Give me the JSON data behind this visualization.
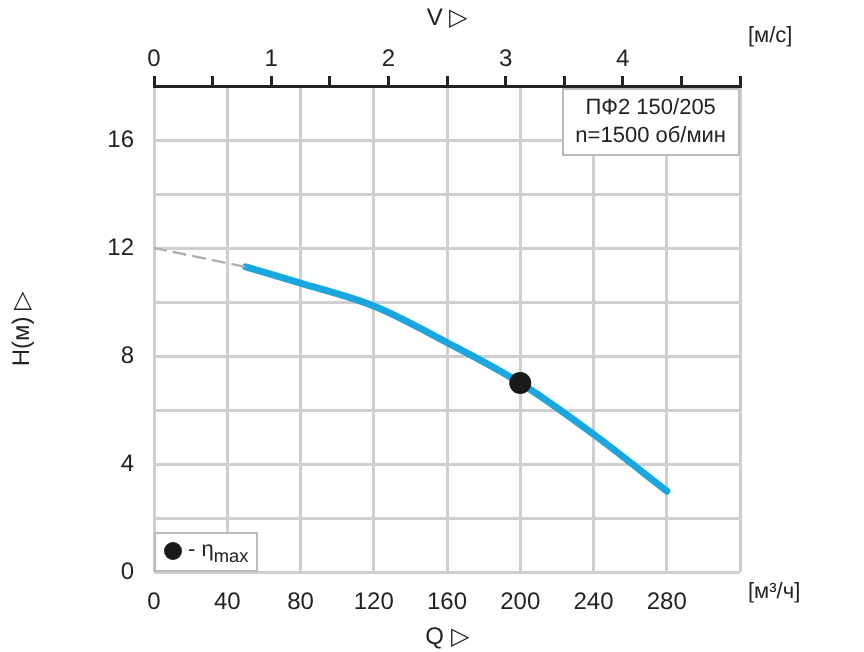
{
  "chart_data": {
    "type": "line",
    "xlabel": "Q ▷",
    "ylabel": "H(м) ▷",
    "x2label": "V ▷",
    "annotations": [
      "ПФ2 150/205",
      "n=1500 об/мин",
      "[м³/ч]",
      "[м/с]"
    ],
    "xlim": [
      0,
      320
    ],
    "xticks": [
      0,
      40,
      80,
      120,
      160,
      200,
      240,
      280,
      {
        "value": 320,
        "label": null
      }
    ],
    "ylim": [
      0,
      18
    ],
    "yticks": [
      0,
      {
        "value": 2,
        "label": null
      },
      4,
      {
        "value": 6,
        "label": null
      },
      8,
      {
        "value": 10,
        "label": null
      },
      12,
      {
        "value": 14,
        "label": null
      },
      16,
      {
        "value": 18,
        "label": null
      }
    ],
    "x2lim": [
      0,
      5
    ],
    "x2ticks": [
      0,
      {
        "value": 0.5,
        "label": null
      },
      1,
      {
        "value": 1.5,
        "label": null
      },
      2,
      {
        "value": 2.5,
        "label": null
      },
      3,
      {
        "value": 3.5,
        "label": null
      },
      4,
      {
        "value": 4.5,
        "label": null
      },
      {
        "value": 5,
        "label": null
      }
    ],
    "grid": true,
    "legend": "bottom left",
    "series": [
      {
        "color": "#b0b0b0",
        "line_style": "dashed",
        "marker": "none",
        "x": [
          0,
          50
        ],
        "values": [
          12,
          11.3
        ]
      },
      {
        "color": "#1aa7e0",
        "line_style": "solid",
        "marker": "none",
        "x": [
          50,
          80,
          120,
          160,
          200,
          240,
          280
        ],
        "values": [
          11.3,
          10.7,
          9.85,
          8.5,
          7,
          5.1,
          3
        ]
      },
      {
        "type": "scatter",
        "name": "- η$_{max}$",
        "color": "#1a1a1a",
        "marker": "circle",
        "x": [
          200
        ],
        "values": [
          7
        ]
      }
    ]
  }
}
